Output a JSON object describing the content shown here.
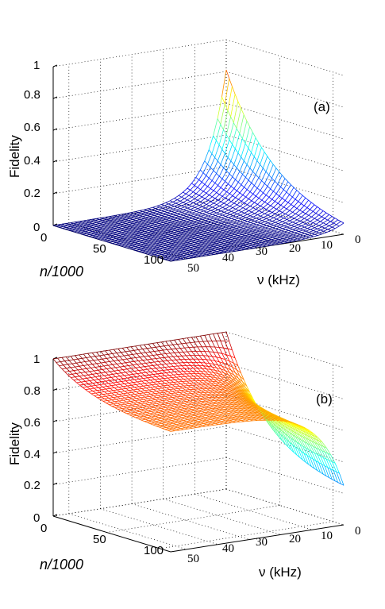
{
  "chart_data": [
    {
      "type": "surface",
      "panel_label": "(a)",
      "zlabel": "Fidelity",
      "xlabel": "n/1000",
      "ylabel": "ν (kHz)",
      "zlim": [
        0,
        1
      ],
      "xlim": [
        0,
        110
      ],
      "ylim": [
        0,
        55
      ],
      "z_ticks": [
        "0",
        "0.2",
        "0.4",
        "0.6",
        "0.8",
        "1"
      ],
      "x_ticks": [
        "0",
        "50",
        "100"
      ],
      "y_ticks": [
        "50",
        "40",
        "30",
        "20",
        "10",
        "0"
      ],
      "grid": true,
      "colormap": "jet",
      "description_values": {
        "fidelity_at_n0_nu0": 0.81,
        "fidelity_at_n0_nu50": 0.0,
        "fidelity_at_n100_nu0": 0.0,
        "fidelity_at_n100_nu50": 0.0
      }
    },
    {
      "type": "surface",
      "panel_label": "(b)",
      "zlabel": "Fidelity",
      "xlabel": "n/1000",
      "ylabel": "ν (kHz)",
      "zlim": [
        0,
        1
      ],
      "xlim": [
        0,
        110
      ],
      "ylim": [
        0,
        55
      ],
      "z_ticks": [
        "0",
        "0.2",
        "0.4",
        "0.6",
        "0.8",
        "1"
      ],
      "x_ticks": [
        "0",
        "50",
        "100"
      ],
      "y_ticks": [
        "50",
        "40",
        "30",
        "20",
        "10",
        "0"
      ],
      "grid": true,
      "colormap": "jet",
      "description_values": {
        "fidelity_at_n0_nu0": 1.0,
        "fidelity_at_n0_nu50": 1.0,
        "fidelity_at_n100_nu50": 0.75,
        "fidelity_at_n100_nu0": 0.2
      }
    }
  ]
}
